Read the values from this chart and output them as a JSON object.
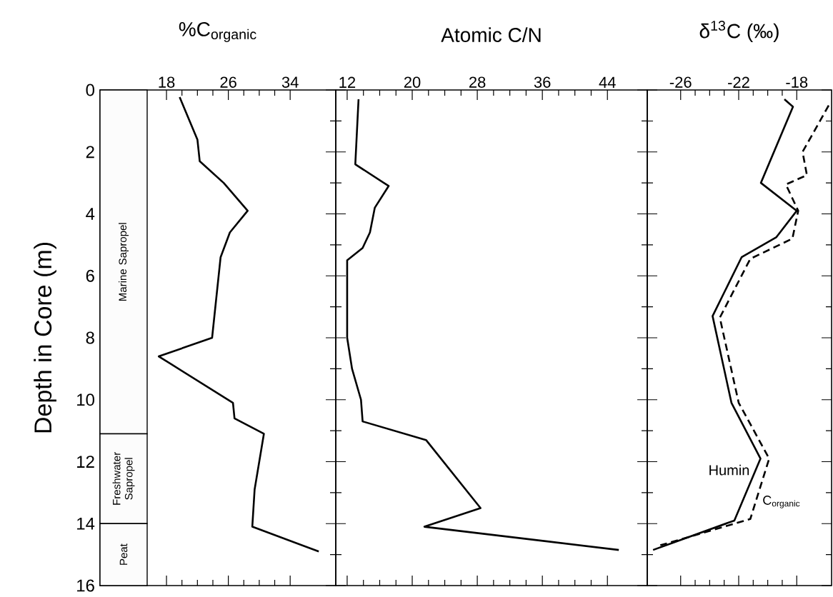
{
  "chart_data": [
    {
      "type": "line",
      "title": "%C$_{organic}$",
      "ylabel": "Depth in Core (m)",
      "xlim": [
        9.4,
        39.9
      ],
      "xticks": [
        18,
        26,
        34
      ],
      "ylim": [
        16,
        0
      ],
      "yticks": [
        0,
        2,
        4,
        6,
        8,
        10,
        12,
        14,
        16
      ],
      "marker": "none",
      "grid": false,
      "legend": false,
      "bands": [
        {
          "axis": "y",
          "from": 0,
          "to": 11.1,
          "label": "Marine Sapropel"
        },
        {
          "axis": "y",
          "from": 11.1,
          "to": 14.0,
          "label": "Freshwater Sapropel"
        },
        {
          "axis": "y",
          "from": 14.0,
          "to": 16,
          "label": "Peat"
        }
      ],
      "series": [
        {
          "color": "#000000",
          "line_style": "solid",
          "x": [
            19.7,
            22.0,
            22.3,
            25.4,
            28.5,
            26.2,
            25.0,
            23.9,
            17.0,
            26.6,
            26.8,
            30.6,
            29.4,
            29.1,
            37.7
          ],
          "values": [
            0.23,
            1.6,
            2.3,
            3.0,
            3.9,
            4.6,
            5.4,
            8.0,
            8.6,
            10.1,
            10.6,
            11.1,
            12.9,
            14.1,
            14.9
          ]
        }
      ]
    },
    {
      "type": "line",
      "title": "Atomic C/N",
      "xlim": [
        10.6,
        48.9
      ],
      "xticks": [
        12,
        20,
        28,
        36,
        44
      ],
      "ylim": [
        16,
        0
      ],
      "yticks": [
        0,
        2,
        4,
        6,
        8,
        10,
        12,
        14,
        16
      ],
      "tick_labels": "x",
      "marker": "none",
      "grid": false,
      "legend": false,
      "series": [
        {
          "color": "#000000",
          "line_style": "solid",
          "x": [
            13.4,
            13.0,
            17.1,
            15.4,
            14.8,
            13.9,
            12.0,
            12.0,
            12.6,
            13.7,
            13.9,
            21.7,
            28.4,
            21.5,
            45.4
          ],
          "values": [
            0.3,
            2.4,
            3.1,
            3.8,
            4.6,
            5.1,
            5.5,
            8.0,
            9.0,
            10.0,
            10.7,
            11.3,
            13.5,
            14.1,
            14.85
          ]
        }
      ]
    },
    {
      "type": "line",
      "title": "δ$^{13}$C (‰)",
      "xlim": [
        -28.3,
        -15.6
      ],
      "xticks": [
        -26,
        -22,
        -18
      ],
      "ylim": [
        16,
        0
      ],
      "yticks": [
        0,
        2,
        4,
        6,
        8,
        10,
        12,
        14,
        16
      ],
      "tick_labels": "x",
      "marker": "none",
      "grid": false,
      "legend": false,
      "series": [
        {
          "name": "Humin",
          "color": "#000000",
          "line_style": "solid",
          "x": [
            -18.85,
            -18.26,
            -20.47,
            -18.0,
            -19.4,
            -21.8,
            -23.8,
            -22.5,
            -20.5,
            -22.3,
            -27.9
          ],
          "values": [
            0.3,
            0.54,
            3.0,
            3.9,
            4.75,
            5.4,
            7.3,
            10.1,
            11.9,
            13.9,
            14.85
          ]
        },
        {
          "name": "C$_{organic}$",
          "color": "#000000",
          "line_style": "dashed",
          "x": [
            -15.8,
            -17.6,
            -17.3,
            -18.75,
            -17.9,
            -18.3,
            -21.2,
            -23.3,
            -22.0,
            -19.9,
            -21.2,
            -27.4
          ],
          "values": [
            0.5,
            2.0,
            2.75,
            3.05,
            3.9,
            4.8,
            5.45,
            7.35,
            10.1,
            11.9,
            13.85,
            14.7
          ]
        }
      ]
    }
  ]
}
